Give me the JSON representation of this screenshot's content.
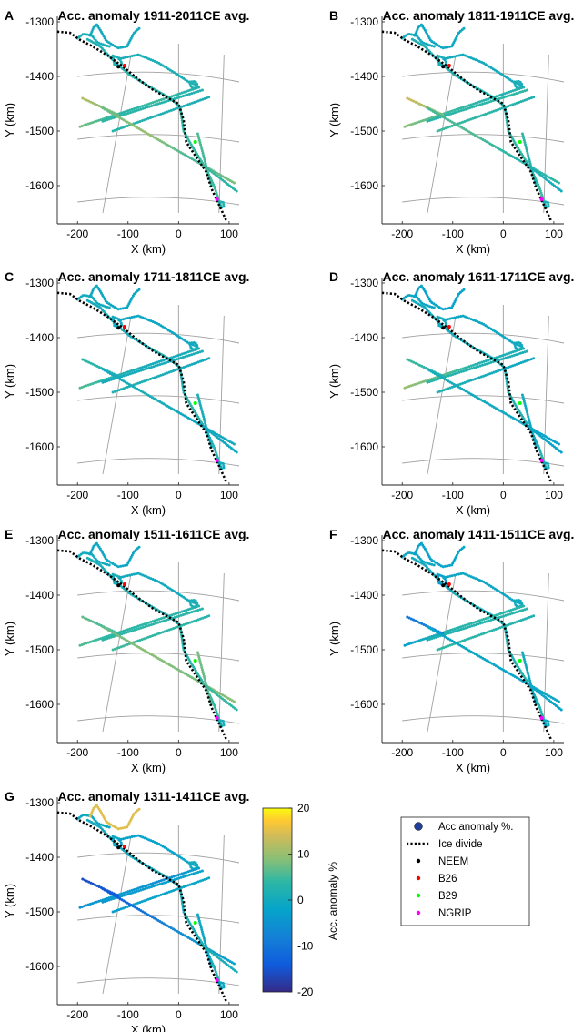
{
  "figure": {
    "panels": [
      {
        "label": "A",
        "title": "Acc. anomaly 1911-2011CE avg.",
        "profile": "A"
      },
      {
        "label": "B",
        "title": "Acc. anomaly 1811-1911CE avg.",
        "profile": "B"
      },
      {
        "label": "C",
        "title": "Acc. anomaly 1711-1811CE avg.",
        "profile": "C"
      },
      {
        "label": "D",
        "title": "Acc. anomaly 1611-1711CE avg.",
        "profile": "D"
      },
      {
        "label": "E",
        "title": "Acc. anomaly 1511-1611CE avg.",
        "profile": "E"
      },
      {
        "label": "F",
        "title": "Acc. anomaly 1411-1511CE avg.",
        "profile": "F"
      },
      {
        "label": "G",
        "title": "Acc. anomaly 1311-1411CE avg.",
        "profile": "G"
      }
    ],
    "colorbar": {
      "label": "Acc. anomaly %",
      "ticks": [
        20,
        10,
        0,
        -10,
        -20
      ],
      "tick_labels": [
        "20",
        "10",
        "0",
        "-10",
        "-20"
      ],
      "range": [
        -20,
        20
      ],
      "colormap": "parula"
    },
    "legend": {
      "entries": [
        {
          "label": "Acc anomaly %.",
          "marker": "circle",
          "color": "#1f3f9a"
        },
        {
          "label": "Ice divide",
          "marker": "dotted-line",
          "color": "#000000"
        },
        {
          "label": "NEEM",
          "marker": "dot",
          "color": "#000000"
        },
        {
          "label": "B26",
          "marker": "dot",
          "color": "#ff0000"
        },
        {
          "label": "B29",
          "marker": "dot",
          "color": "#00ff00"
        },
        {
          "label": "NGRIP",
          "marker": "dot",
          "color": "#ff00ff"
        }
      ]
    }
  },
  "chart_data": {
    "type": "scatter",
    "description_units": "Acc. anomaly %",
    "xlabel": "X (km)",
    "ylabel": "Y (km)",
    "xlim": [
      -240,
      120
    ],
    "ylim": [
      -1670,
      -1290
    ],
    "x_ticks": [
      -200,
      -100,
      0,
      100
    ],
    "x_tick_labels": [
      "-200",
      "-100",
      "0",
      "100"
    ],
    "y_ticks": [
      -1300,
      -1400,
      -1500,
      -1600
    ],
    "y_tick_labels": [
      "-1300",
      "-1400",
      "-1500",
      "-1600"
    ],
    "ice_divide": [
      [
        -240,
        -1318
      ],
      [
        -215,
        -1320
      ],
      [
        -195,
        -1333
      ],
      [
        -170,
        -1345
      ],
      [
        -140,
        -1362
      ],
      [
        -110,
        -1382
      ],
      [
        -80,
        -1405
      ],
      [
        -50,
        -1425
      ],
      [
        -20,
        -1440
      ],
      [
        0,
        -1450
      ],
      [
        10,
        -1480
      ],
      [
        15,
        -1520
      ],
      [
        40,
        -1555
      ],
      [
        55,
        -1575
      ],
      [
        65,
        -1605
      ],
      [
        80,
        -1635
      ],
      [
        95,
        -1665
      ]
    ],
    "stations": [
      {
        "name": "NEEM",
        "x": -119,
        "y": -1382,
        "color": "#000000"
      },
      {
        "name": "B26",
        "x": -107,
        "y": -1380,
        "color": "#ff0000"
      },
      {
        "name": "B29",
        "x": 33,
        "y": -1520,
        "color": "#00ff00"
      },
      {
        "name": "NGRIP",
        "x": 76,
        "y": -1625,
        "color": "#ff00ff"
      }
    ],
    "transects": [
      {
        "id": "main-line",
        "points": [
          [
            -180,
            -1332
          ],
          [
            -155,
            -1345
          ],
          [
            -125,
            -1375
          ],
          [
            -95,
            -1398
          ],
          [
            -55,
            -1420
          ],
          [
            -20,
            -1438
          ],
          [
            3,
            -1455
          ],
          [
            10,
            -1500
          ],
          [
            25,
            -1525
          ],
          [
            55,
            -1570
          ],
          [
            70,
            -1600
          ],
          [
            85,
            -1640
          ]
        ]
      },
      {
        "id": "north-branch",
        "points": [
          [
            -200,
            -1330
          ],
          [
            -188,
            -1322
          ],
          [
            -172,
            -1325
          ],
          [
            -160,
            -1338
          ],
          [
            -145,
            -1343
          ],
          [
            -137,
            -1345
          ]
        ]
      },
      {
        "id": "north-spur",
        "points": [
          [
            -175,
            -1325
          ],
          [
            -168,
            -1310
          ],
          [
            -162,
            -1305
          ],
          [
            -155,
            -1315
          ],
          [
            -143,
            -1335
          ],
          [
            -120,
            -1348
          ],
          [
            -102,
            -1345
          ],
          [
            -88,
            -1320
          ],
          [
            -78,
            -1312
          ]
        ]
      },
      {
        "id": "neem-loop",
        "points": [
          [
            -130,
            -1362
          ],
          [
            -127,
            -1378
          ],
          [
            -118,
            -1382
          ],
          [
            -112,
            -1376
          ],
          [
            -118,
            -1366
          ],
          [
            -130,
            -1362
          ]
        ]
      },
      {
        "id": "ngrip-arc",
        "points": [
          [
            -118,
            -1368
          ],
          [
            -80,
            -1360
          ],
          [
            -40,
            -1375
          ],
          [
            -5,
            -1395
          ],
          [
            20,
            -1410
          ],
          [
            33,
            -1415
          ]
        ]
      },
      {
        "id": "ngrip-loop",
        "points": [
          [
            22,
            -1410
          ],
          [
            25,
            -1420
          ],
          [
            33,
            -1422
          ],
          [
            38,
            -1416
          ],
          [
            33,
            -1409
          ],
          [
            22,
            -1410
          ]
        ]
      },
      {
        "id": "w1",
        "points": [
          [
            -195,
            -1492
          ],
          [
            40,
            -1420
          ]
        ]
      },
      {
        "id": "w2",
        "points": [
          [
            -150,
            -1482
          ],
          [
            47,
            -1425
          ]
        ]
      },
      {
        "id": "w3",
        "points": [
          [
            -130,
            -1500
          ],
          [
            60,
            -1438
          ]
        ]
      },
      {
        "id": "w4",
        "points": [
          [
            -190,
            -1440
          ],
          [
            -120,
            -1470
          ]
        ]
      },
      {
        "id": "w5",
        "points": [
          [
            -150,
            -1458
          ],
          [
            110,
            -1595
          ]
        ]
      },
      {
        "id": "b29-line",
        "points": [
          [
            38,
            -1505
          ],
          [
            65,
            -1600
          ]
        ]
      },
      {
        "id": "se-line",
        "points": [
          [
            45,
            -1560
          ],
          [
            115,
            -1610
          ]
        ]
      },
      {
        "id": "ngrip-end-loop",
        "points": [
          [
            80,
            -1630
          ],
          [
            84,
            -1640
          ],
          [
            90,
            -1638
          ],
          [
            88,
            -1630
          ],
          [
            80,
            -1630
          ]
        ]
      }
    ],
    "anomaly_percent_by_panel": {
      "A": {
        "main-line": [
          2,
          2,
          3,
          3,
          4,
          4,
          5,
          5
        ],
        "north-branch": [
          1
        ],
        "north-spur": [
          0
        ],
        "neem-loop": [
          2
        ],
        "ngrip-arc": [
          1
        ],
        "ngrip-loop": [
          2
        ],
        "w1": [
          8,
          3,
          5,
          2
        ],
        "w2": [
          4,
          2
        ],
        "w3": [
          3,
          1
        ],
        "w4": [
          12,
          7
        ],
        "w5": [
          7,
          10,
          5,
          8
        ],
        "b29-line": [
          6,
          4
        ],
        "se-line": [
          5,
          3
        ],
        "ngrip-end-loop": [
          2
        ]
      },
      "B": {
        "main-line": [
          1,
          2,
          2,
          3,
          3,
          4,
          4,
          5
        ],
        "north-branch": [
          0
        ],
        "north-spur": [
          -1
        ],
        "neem-loop": [
          1
        ],
        "ngrip-arc": [
          0
        ],
        "ngrip-loop": [
          1
        ],
        "w1": [
          9,
          5,
          3,
          2
        ],
        "w2": [
          3,
          4
        ],
        "w3": [
          5,
          2
        ],
        "w4": [
          14,
          8
        ],
        "w5": [
          5,
          6,
          3,
          4
        ],
        "b29-line": [
          4,
          2
        ],
        "se-line": [
          2,
          0
        ],
        "ngrip-end-loop": [
          1
        ]
      },
      "C": {
        "main-line": [
          0,
          1,
          1,
          2,
          2,
          3,
          3,
          3
        ],
        "north-branch": [
          0
        ],
        "north-spur": [
          -1
        ],
        "neem-loop": [
          0
        ],
        "ngrip-arc": [
          -1
        ],
        "ngrip-loop": [
          0
        ],
        "w1": [
          6,
          2,
          0,
          1
        ],
        "w2": [
          0,
          1
        ],
        "w3": [
          2,
          0
        ],
        "w4": [
          4,
          1
        ],
        "w5": [
          0,
          1,
          -1,
          0
        ],
        "b29-line": [
          1,
          0
        ],
        "se-line": [
          0,
          -1
        ],
        "ngrip-end-loop": [
          0
        ]
      },
      "D": {
        "main-line": [
          0,
          0,
          1,
          1,
          2,
          2,
          2,
          3
        ],
        "north-branch": [
          -1
        ],
        "north-spur": [
          -2
        ],
        "neem-loop": [
          0
        ],
        "ngrip-arc": [
          -1
        ],
        "ngrip-loop": [
          0
        ],
        "w1": [
          10,
          6,
          2,
          1
        ],
        "w2": [
          3,
          1
        ],
        "w3": [
          2,
          -1
        ],
        "w4": [
          5,
          2
        ],
        "w5": [
          1,
          0,
          -1,
          -2
        ],
        "b29-line": [
          0,
          -1
        ],
        "se-line": [
          -1,
          -2
        ],
        "ngrip-end-loop": [
          0
        ]
      },
      "E": {
        "main-line": [
          1,
          1,
          2,
          2,
          3,
          3,
          4,
          4
        ],
        "north-branch": [
          0
        ],
        "north-spur": [
          -1
        ],
        "neem-loop": [
          1
        ],
        "ngrip-arc": [
          0
        ],
        "ngrip-loop": [
          1
        ],
        "w1": [
          6,
          3,
          4,
          2
        ],
        "w2": [
          4,
          3
        ],
        "w3": [
          5,
          3
        ],
        "w4": [
          7,
          4
        ],
        "w5": [
          7,
          9,
          8,
          9
        ],
        "b29-line": [
          8,
          6
        ],
        "se-line": [
          5,
          4
        ],
        "ngrip-end-loop": [
          1
        ]
      },
      "F": {
        "main-line": [
          0,
          0,
          1,
          1,
          2,
          2,
          2,
          2
        ],
        "north-branch": [
          -1
        ],
        "north-spur": [
          -2
        ],
        "neem-loop": [
          -3
        ],
        "ngrip-arc": [
          -1
        ],
        "ngrip-loop": [
          0
        ],
        "w1": [
          -3,
          2,
          4,
          3
        ],
        "w2": [
          2,
          3
        ],
        "w3": [
          4,
          2
        ],
        "w4": [
          -10,
          -7
        ],
        "w5": [
          -2,
          -1,
          -2,
          -1
        ],
        "b29-line": [
          0,
          -1
        ],
        "se-line": [
          -1,
          -2
        ],
        "ngrip-end-loop": [
          -1
        ]
      },
      "G": {
        "main-line": [
          0,
          0,
          0,
          1,
          1,
          1,
          2,
          2
        ],
        "north-branch": [
          -1
        ],
        "north-spur": [
          15
        ],
        "neem-loop": [
          -1
        ],
        "ngrip-arc": [
          -2
        ],
        "ngrip-loop": [
          0
        ],
        "w1": [
          -5,
          -3,
          -6,
          -3
        ],
        "w2": [
          -4,
          -2
        ],
        "w3": [
          -3,
          -1
        ],
        "w4": [
          -16,
          -14
        ],
        "w5": [
          -15,
          -10,
          -5,
          -2
        ],
        "b29-line": [
          -1,
          -2
        ],
        "se-line": [
          2,
          1
        ],
        "ngrip-end-loop": [
          -1
        ]
      }
    }
  }
}
